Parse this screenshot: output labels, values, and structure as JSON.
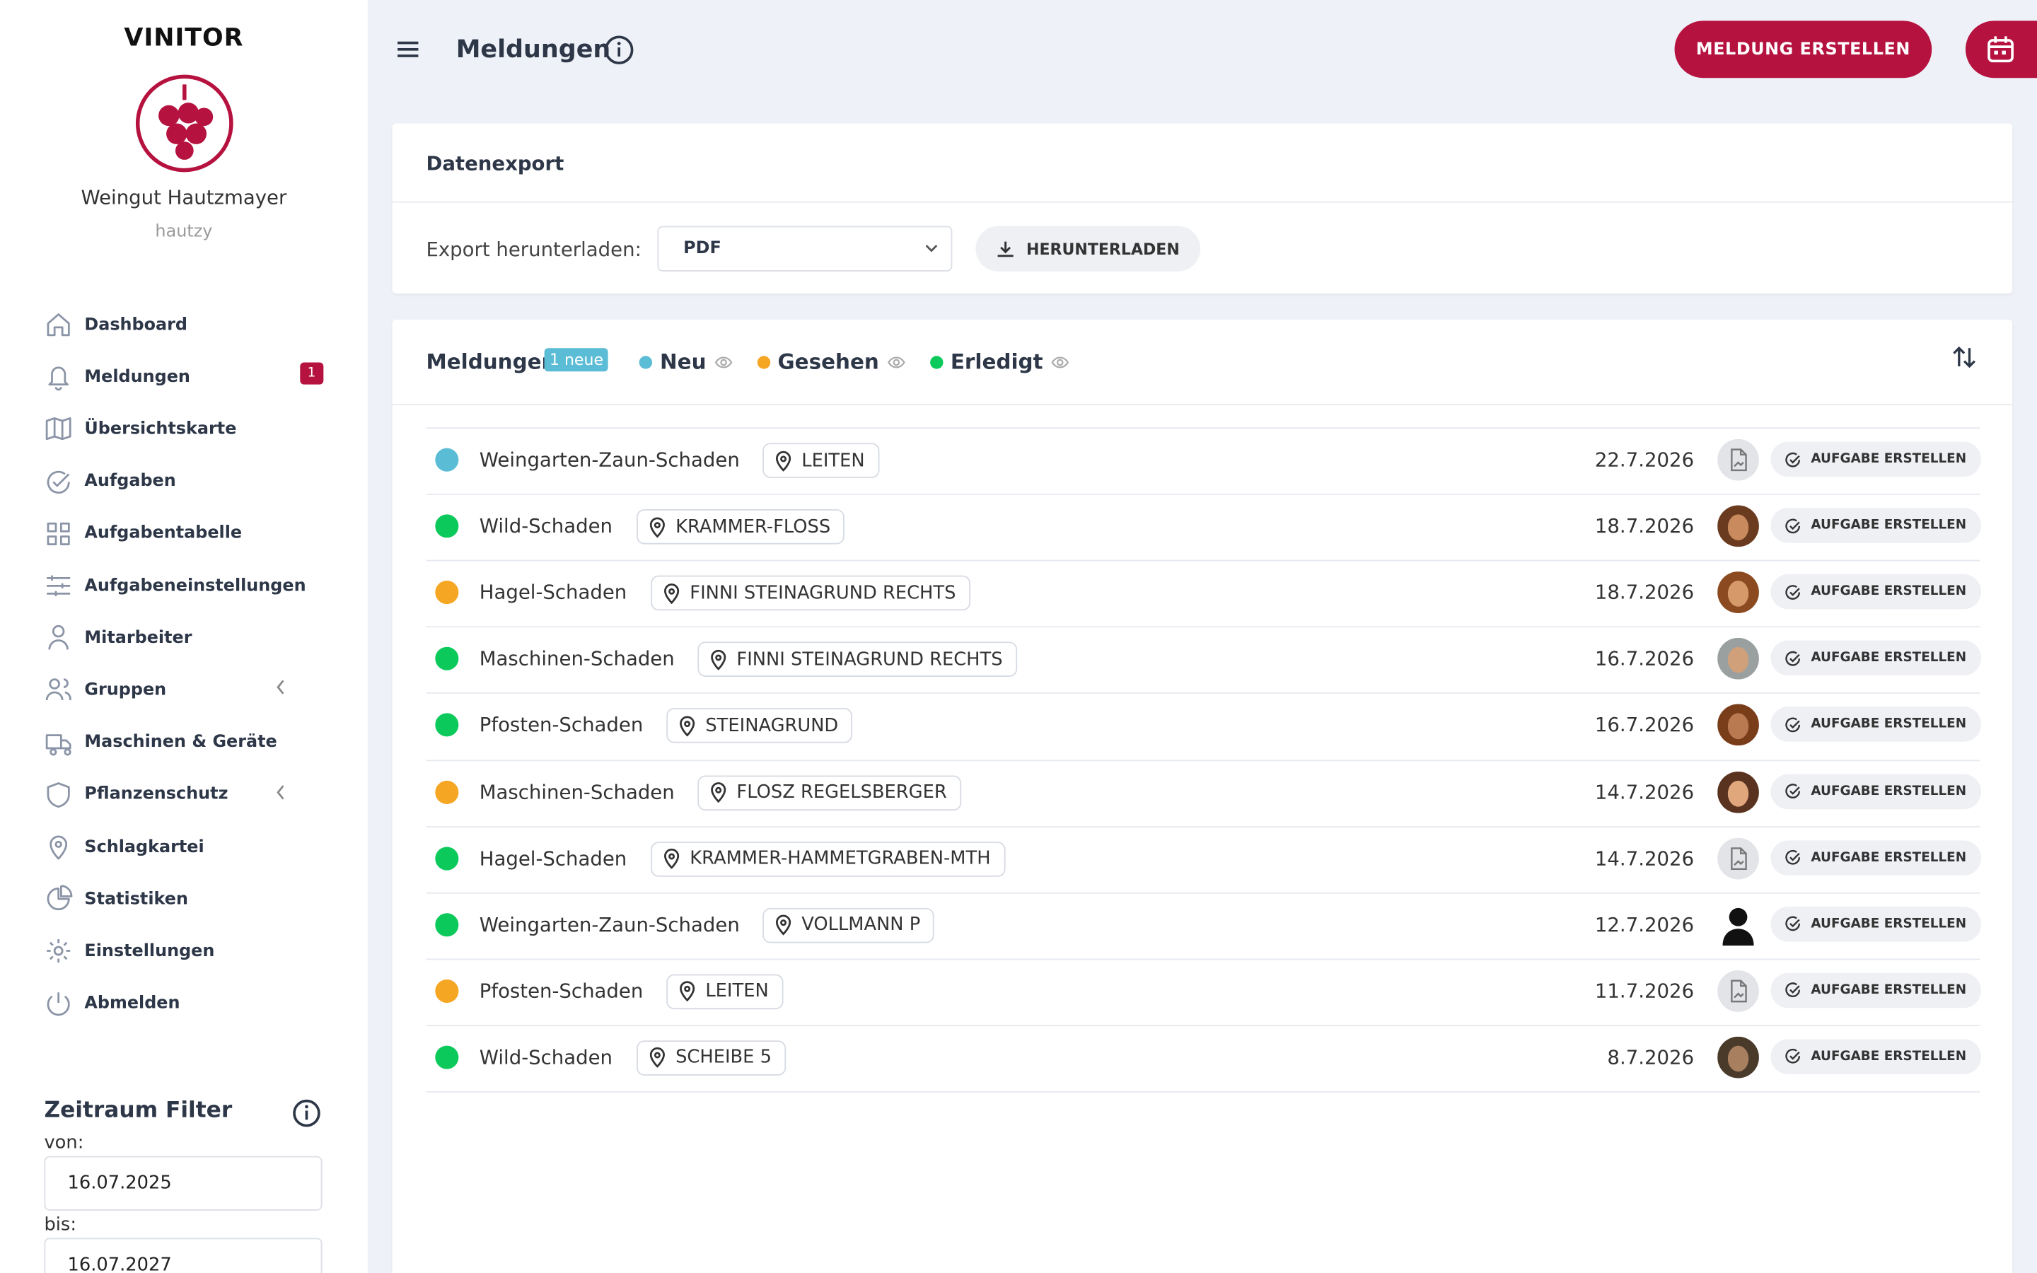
{
  "sidebar": {
    "brand": "VINITOR",
    "company": "Weingut Hautzmayer",
    "username": "hautzy",
    "nav": [
      {
        "label": "Dashboard",
        "icon": "home"
      },
      {
        "label": "Meldungen",
        "icon": "bell",
        "badge": "1",
        "active": true
      },
      {
        "label": "Übersichtskarte",
        "icon": "map"
      },
      {
        "label": "Aufgaben",
        "icon": "check"
      },
      {
        "label": "Aufgabentabelle",
        "icon": "grid"
      },
      {
        "label": "Aufgabeneinstellungen",
        "icon": "sliders"
      },
      {
        "label": "Mitarbeiter",
        "icon": "user"
      },
      {
        "label": "Gruppen",
        "icon": "users",
        "expandable": true
      },
      {
        "label": "Maschinen & Geräte",
        "icon": "truck"
      },
      {
        "label": "Pflanzenschutz",
        "icon": "shield",
        "expandable": true
      },
      {
        "label": "Schlagkartei",
        "icon": "pin"
      },
      {
        "label": "Statistiken",
        "icon": "pie"
      },
      {
        "label": "Einstellungen",
        "icon": "gear"
      },
      {
        "label": "Abmelden",
        "icon": "power"
      }
    ],
    "filter": {
      "title": "Zeitraum Filter",
      "from_label": "von:",
      "from": "16.07.2025",
      "to_label": "bis:",
      "to": "16.07.2027"
    }
  },
  "header": {
    "title": "Meldungen",
    "create_button": "MELDUNG ERSTELLEN"
  },
  "export": {
    "title": "Datenexport",
    "label": "Export herunterladen:",
    "format": "PDF",
    "button": "HERUNTERLADEN"
  },
  "reports": {
    "title": "Meldungen",
    "new_badge": "1 neue",
    "action": "AUFGABE ERSTELLEN",
    "statuses": [
      {
        "label": "Neu",
        "color": "#5bbcd6"
      },
      {
        "label": "Gesehen",
        "color": "#f5a623"
      },
      {
        "label": "Erledigt",
        "color": "#0bc95a"
      }
    ],
    "rows": [
      {
        "name": "Weingarten-Zaun-Schaden",
        "location": "LEITEN",
        "date": "22.7.2026",
        "color": "#5bbcd6",
        "avatar": "document"
      },
      {
        "name": "Wild-Schaden",
        "location": "KRAMMER-FLOSS",
        "date": "18.7.2026",
        "color": "#0bc95a",
        "avatar": "photo"
      },
      {
        "name": "Hagel-Schaden",
        "location": "FINNI STEINAGRUND RECHTS",
        "date": "18.7.2026",
        "color": "#f5a623",
        "avatar": "photo"
      },
      {
        "name": "Maschinen-Schaden",
        "location": "FINNI STEINAGRUND RECHTS",
        "date": "16.7.2026",
        "color": "#0bc95a",
        "avatar": "photo"
      },
      {
        "name": "Pfosten-Schaden",
        "location": "STEINAGRUND",
        "date": "16.7.2026",
        "color": "#0bc95a",
        "avatar": "photo"
      },
      {
        "name": "Maschinen-Schaden",
        "location": "FLOSZ REGELSBERGER",
        "date": "14.7.2026",
        "color": "#f5a623",
        "avatar": "photo"
      },
      {
        "name": "Hagel-Schaden",
        "location": "KRAMMER-HAMMETGRABEN-MTH",
        "date": "14.7.2026",
        "color": "#0bc95a",
        "avatar": "document"
      },
      {
        "name": "Weingarten-Zaun-Schaden",
        "location": "VOLLMANN P",
        "date": "12.7.2026",
        "color": "#0bc95a",
        "avatar": "person"
      },
      {
        "name": "Pfosten-Schaden",
        "location": "LEITEN",
        "date": "11.7.2026",
        "color": "#f5a623",
        "avatar": "document"
      },
      {
        "name": "Wild-Schaden",
        "location": "SCHEIBE 5",
        "date": "8.7.2026",
        "color": "#0bc95a",
        "avatar": "photo"
      }
    ]
  }
}
